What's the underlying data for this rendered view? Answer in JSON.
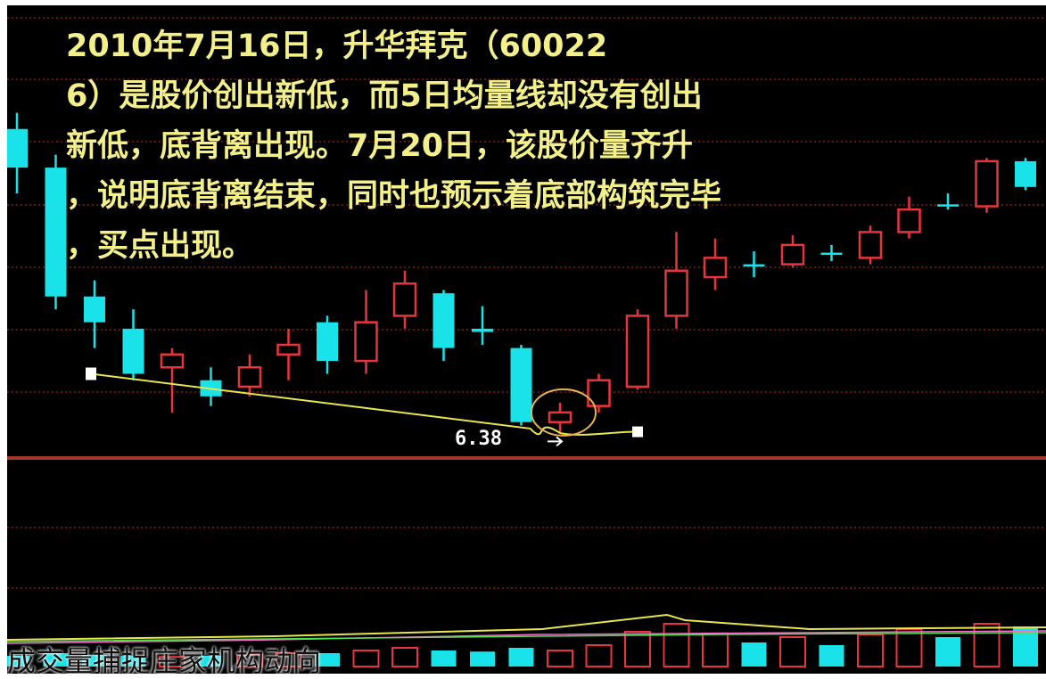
{
  "annotation": {
    "lines": [
      "2010年7月16日，升华拜克（60022",
      "6）是股价创出新低，而5日均量线却没有创出",
      "新低，底背离出现。7月20日，该股价量齐升",
      "，说明底背离结束，同时也预示着底部构筑完毕",
      "，买点出现。"
    ]
  },
  "low_label": "6.38",
  "caption": "成交量捕捉庄家机构动向",
  "colors": {
    "background": "#000000",
    "up": "#e8343c",
    "down": "#19e3e8",
    "ma_line": "#e6e650",
    "circle": "#e6b450",
    "annotation_text": "#f3f08a",
    "grid": "#8b1a1a"
  },
  "chart_data": {
    "type": "candlestick",
    "series": [
      {
        "name": "price",
        "candles": [
          {
            "open": 11.1,
            "close": 10.5,
            "high": 11.35,
            "low": 10.1,
            "dir": "down"
          },
          {
            "open": 10.5,
            "close": 8.5,
            "high": 10.7,
            "low": 8.3,
            "dir": "down"
          },
          {
            "open": 8.5,
            "close": 8.1,
            "high": 8.75,
            "low": 7.7,
            "dir": "down"
          },
          {
            "open": 8.0,
            "close": 7.3,
            "high": 8.3,
            "low": 7.2,
            "dir": "down"
          },
          {
            "open": 7.4,
            "close": 7.6,
            "high": 7.7,
            "low": 6.7,
            "dir": "up"
          },
          {
            "open": 7.2,
            "close": 6.95,
            "high": 7.4,
            "low": 6.8,
            "dir": "down"
          },
          {
            "open": 7.1,
            "close": 7.4,
            "high": 7.6,
            "low": 6.95,
            "dir": "up"
          },
          {
            "open": 7.6,
            "close": 7.75,
            "high": 8.0,
            "low": 7.2,
            "dir": "up"
          },
          {
            "open": 8.1,
            "close": 7.5,
            "high": 8.2,
            "low": 7.3,
            "dir": "down"
          },
          {
            "open": 7.5,
            "close": 8.1,
            "high": 8.6,
            "low": 7.3,
            "dir": "up"
          },
          {
            "open": 8.2,
            "close": 8.7,
            "high": 8.9,
            "low": 8.0,
            "dir": "up"
          },
          {
            "open": 8.55,
            "close": 7.7,
            "high": 8.6,
            "low": 7.5,
            "dir": "down"
          },
          {
            "open": 8.0,
            "close": 7.95,
            "high": 8.35,
            "low": 7.75,
            "dir": "down"
          },
          {
            "open": 7.7,
            "close": 6.55,
            "high": 7.75,
            "low": 6.5,
            "dir": "down"
          },
          {
            "open": 6.55,
            "close": 6.7,
            "high": 6.85,
            "low": 6.38,
            "dir": "up"
          },
          {
            "open": 6.8,
            "close": 7.2,
            "high": 7.3,
            "low": 6.7,
            "dir": "up"
          },
          {
            "open": 7.1,
            "close": 8.2,
            "high": 8.3,
            "low": 7.05,
            "dir": "up"
          },
          {
            "open": 8.2,
            "close": 8.9,
            "high": 9.5,
            "low": 8.0,
            "dir": "up"
          },
          {
            "open": 8.8,
            "close": 9.1,
            "high": 9.4,
            "low": 8.6,
            "dir": "up"
          },
          {
            "open": 9.0,
            "close": 9.0,
            "high": 9.2,
            "low": 8.8,
            "dir": "down"
          },
          {
            "open": 9.0,
            "close": 9.3,
            "high": 9.45,
            "low": 8.95,
            "dir": "up"
          },
          {
            "open": 9.18,
            "close": 9.18,
            "high": 9.3,
            "low": 9.05,
            "dir": "down"
          },
          {
            "open": 9.1,
            "close": 9.5,
            "high": 9.6,
            "low": 9.0,
            "dir": "up"
          },
          {
            "open": 9.5,
            "close": 9.85,
            "high": 10.05,
            "low": 9.4,
            "dir": "up"
          },
          {
            "open": 9.93,
            "close": 9.93,
            "high": 10.1,
            "low": 9.85,
            "dir": "down"
          },
          {
            "open": 9.9,
            "close": 10.6,
            "high": 10.65,
            "low": 9.8,
            "dir": "up"
          },
          {
            "open": 10.6,
            "close": 10.2,
            "high": 10.65,
            "low": 10.15,
            "dir": "down"
          }
        ]
      }
    ],
    "ma_line": [
      {
        "index": 0,
        "price": 7.3
      },
      {
        "index": 13,
        "price": 6.45
      },
      {
        "index": 14,
        "price": 6.38
      },
      {
        "index": 16,
        "price": 6.4
      }
    ],
    "annotations": [
      "6.38"
    ],
    "volume": [
      {
        "v": 0.2,
        "dir": "down"
      },
      {
        "v": 0.25,
        "dir": "down"
      },
      {
        "v": 0.22,
        "dir": "down"
      },
      {
        "v": 0.2,
        "dir": "down"
      },
      {
        "v": 0.18,
        "dir": "up"
      },
      {
        "v": 0.2,
        "dir": "down"
      },
      {
        "v": 0.22,
        "dir": "up"
      },
      {
        "v": 0.25,
        "dir": "up"
      },
      {
        "v": 0.25,
        "dir": "down"
      },
      {
        "v": 0.3,
        "dir": "up"
      },
      {
        "v": 0.35,
        "dir": "up"
      },
      {
        "v": 0.3,
        "dir": "down"
      },
      {
        "v": 0.28,
        "dir": "down"
      },
      {
        "v": 0.35,
        "dir": "down"
      },
      {
        "v": 0.3,
        "dir": "up"
      },
      {
        "v": 0.4,
        "dir": "up"
      },
      {
        "v": 0.65,
        "dir": "up"
      },
      {
        "v": 0.8,
        "dir": "up"
      },
      {
        "v": 0.62,
        "dir": "up"
      },
      {
        "v": 0.45,
        "dir": "down"
      },
      {
        "v": 0.55,
        "dir": "up"
      },
      {
        "v": 0.4,
        "dir": "down"
      },
      {
        "v": 0.6,
        "dir": "up"
      },
      {
        "v": 0.7,
        "dir": "up"
      },
      {
        "v": 0.55,
        "dir": "down"
      },
      {
        "v": 0.8,
        "dir": "up"
      },
      {
        "v": 0.75,
        "dir": "down"
      }
    ]
  }
}
